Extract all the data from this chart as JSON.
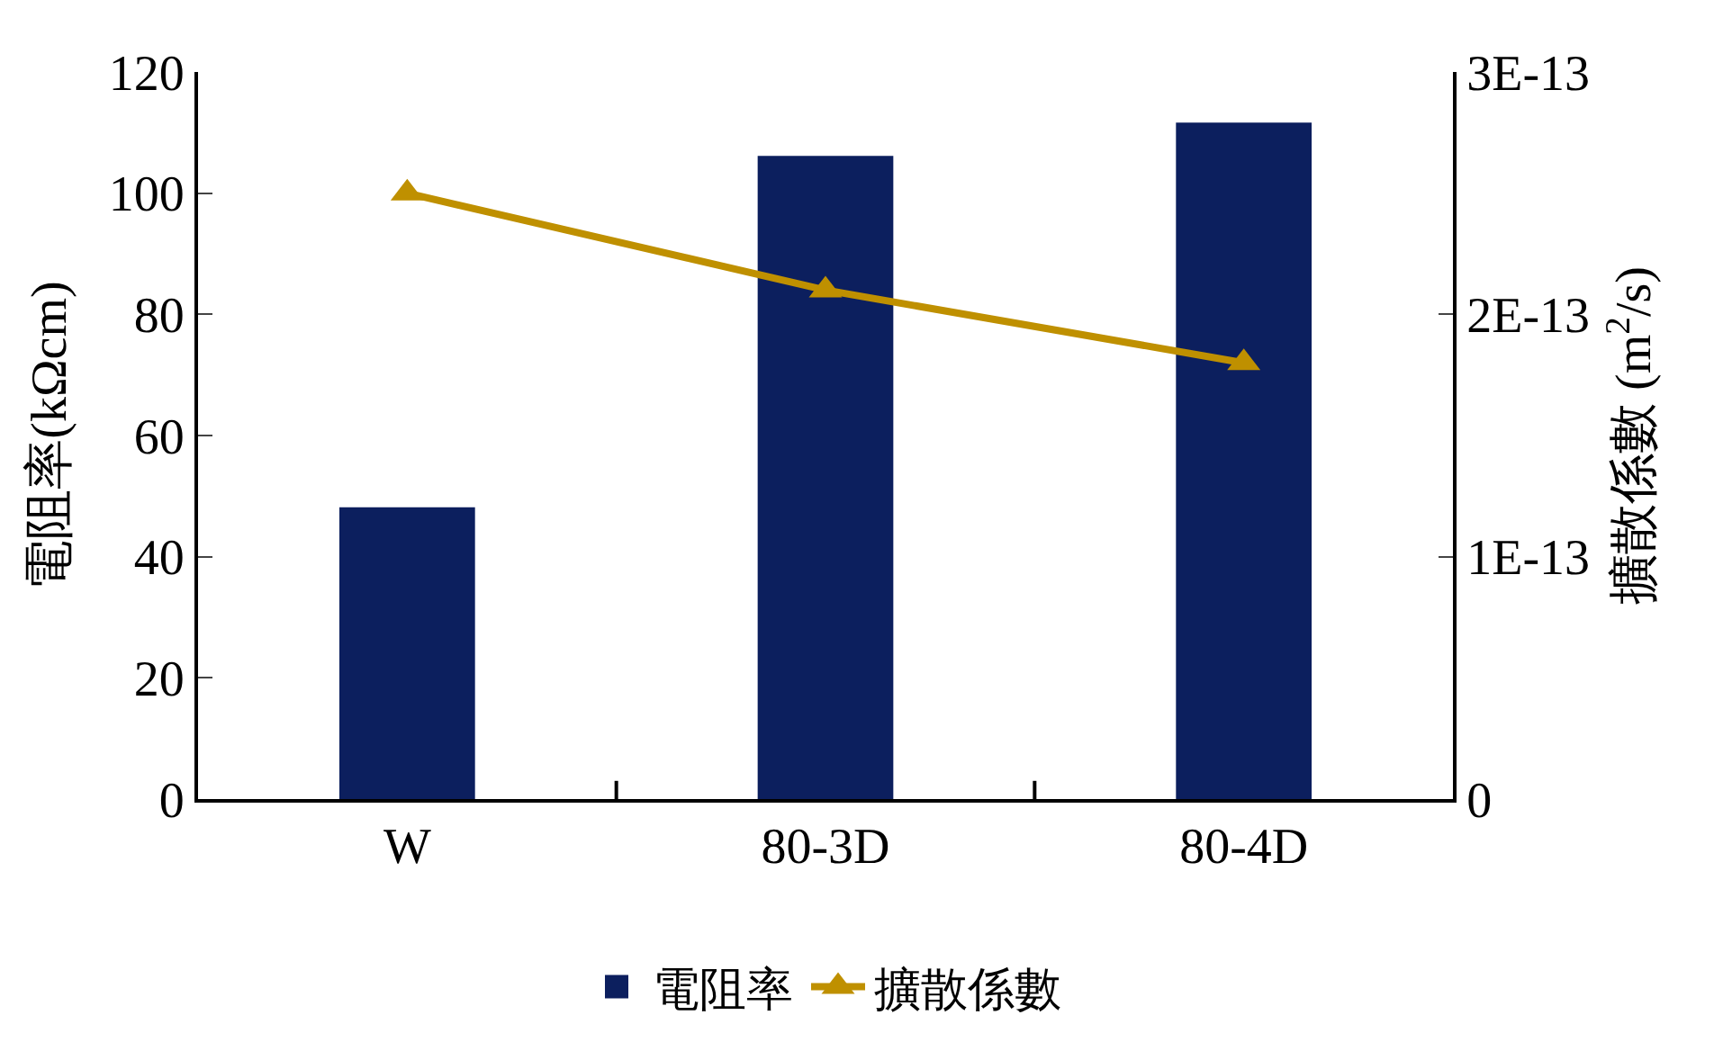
{
  "chart_data": {
    "type": "bar",
    "categories": [
      "W",
      "80-3D",
      "80-4D"
    ],
    "series": [
      {
        "name": "電阻率",
        "color": "#0c1f5e",
        "values": [
          48,
          106,
          111.5
        ]
      },
      {
        "name": "擴散係數",
        "type": "line",
        "axis": "y2",
        "color": "#bf9000",
        "marker": "triangle",
        "values": [
          2.5e-13,
          2.1e-13,
          1.8e-13
        ]
      }
    ],
    "ylabel": "電阻率(kΩcm)",
    "y2label": "擴散係數 (m$^{2}$/s)",
    "ylim": [
      0,
      120
    ],
    "yticks": [
      0,
      20,
      40,
      60,
      80,
      100,
      120
    ],
    "y2lim": [
      0,
      3e-13
    ],
    "y2ticks": [
      {
        "value": 0,
        "label": "0"
      },
      {
        "value": 1e-13,
        "label": "1E-13"
      },
      {
        "value": 2e-13,
        "label": "2E-13"
      },
      {
        "value": 3e-13,
        "label": "3E-13"
      }
    ],
    "grid": false,
    "legend": "bottom"
  }
}
